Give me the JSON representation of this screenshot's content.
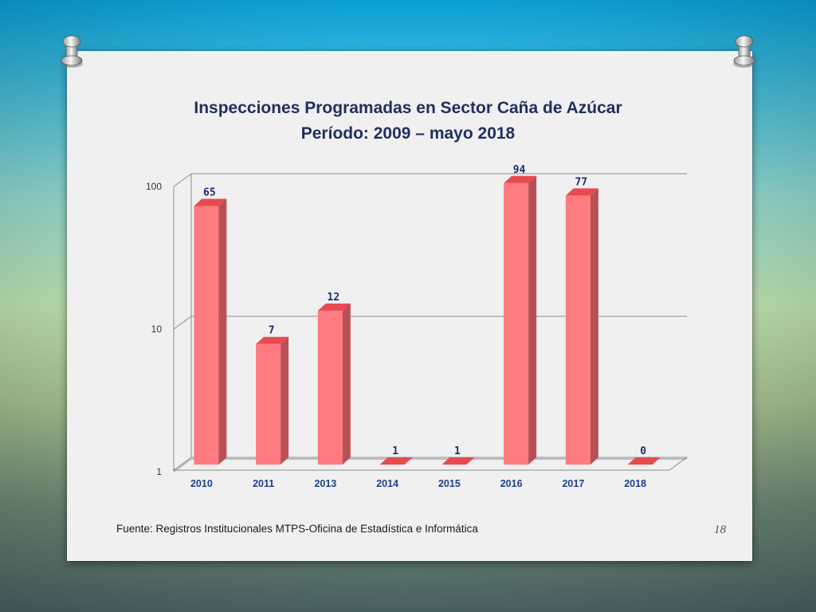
{
  "slide": {
    "title_line1": "Inspecciones Programadas en  Sector  Caña de Azúcar",
    "title_line2": "Período: 2009 – mayo 2018",
    "source": "Fuente: Registros Institucionales MTPS-Oficina de Estadística e Informática",
    "page_number": "18"
  },
  "colors": {
    "bar_front": "#ff7b80",
    "bar_top": "#e84a50",
    "bar_side": "#b85056",
    "label": "#1f2f6f",
    "axis_label": "#1f3f8f"
  },
  "icons": [
    "pushpin-icon-left",
    "pushpin-icon-right"
  ],
  "chart_data": {
    "type": "bar",
    "title": "Inspecciones Programadas en  Sector  Caña de Azúcar Período: 2009 – mayo 2018",
    "categories": [
      "2010",
      "2011",
      "2013",
      "2014",
      "2015",
      "2016",
      "2017",
      "2018"
    ],
    "values": [
      65,
      7,
      12,
      1,
      1,
      94,
      77,
      0
    ],
    "y_scale": "log",
    "ylim": [
      1,
      100
    ],
    "y_ticks": [
      "1",
      "10",
      "100"
    ],
    "grid": true,
    "legend": "none",
    "style": "3d"
  }
}
